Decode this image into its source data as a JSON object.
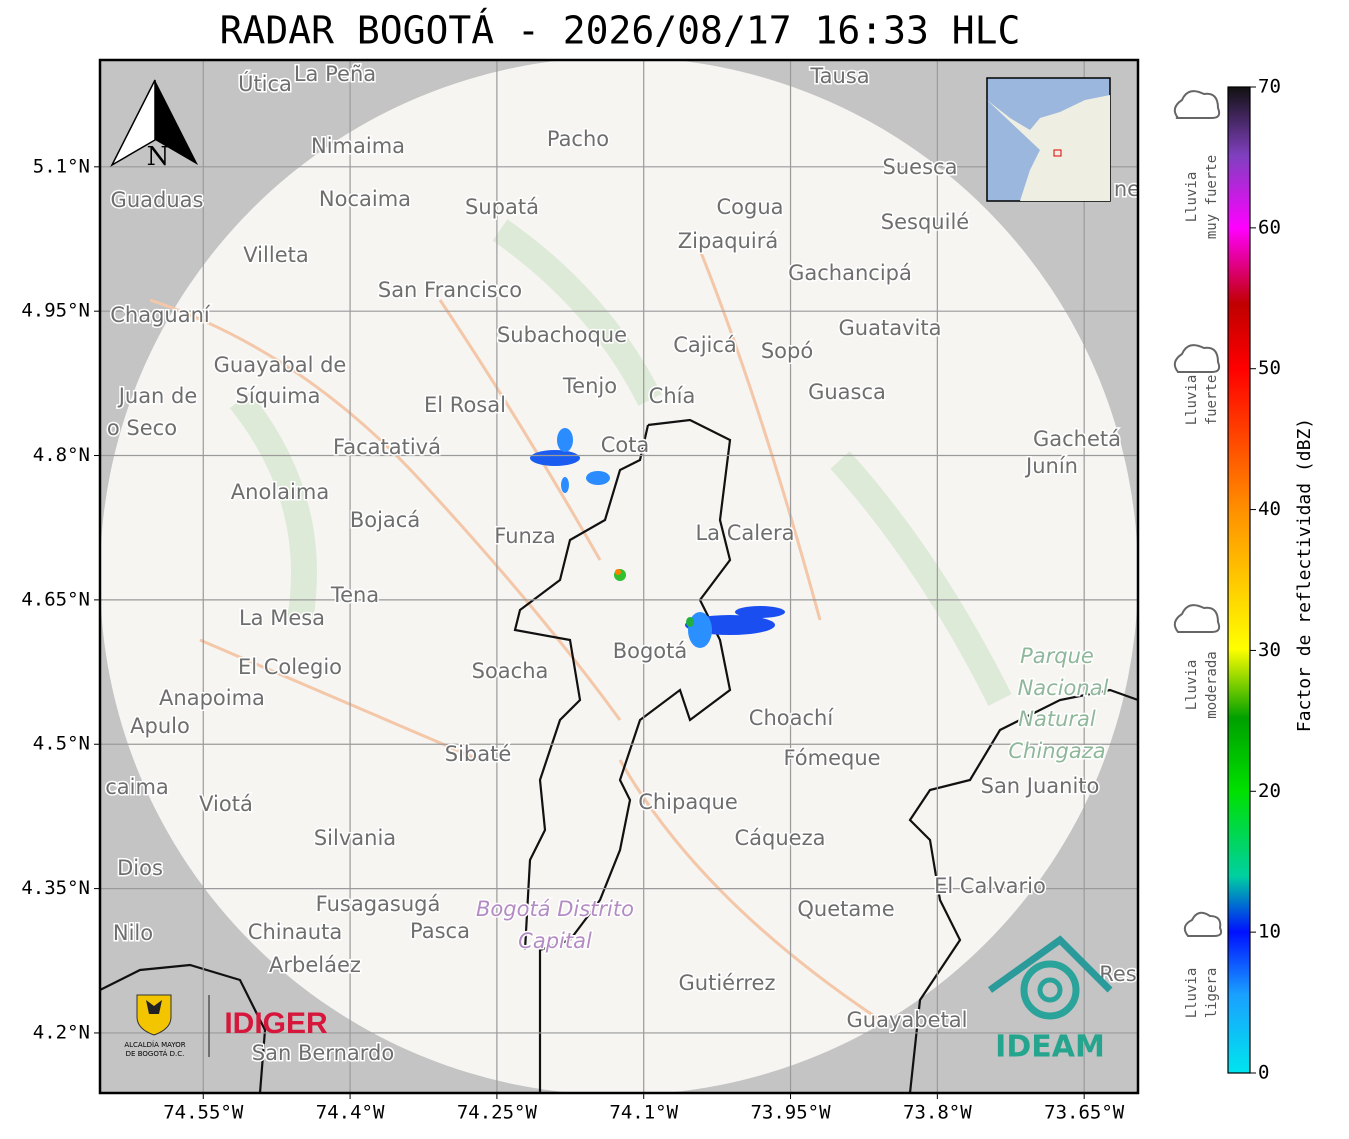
{
  "title": "RADAR BOGOTÁ - 2026/08/17 16:33 HLC",
  "map": {
    "xlim": [
      -74.6555,
      -73.595
    ],
    "ylim": [
      4.1376,
      5.211
    ],
    "grid": true,
    "xticks": [
      {
        "value": -74.55,
        "label": "74.55°W"
      },
      {
        "value": -74.4,
        "label": "74.4°W"
      },
      {
        "value": -74.25,
        "label": "74.25°W"
      },
      {
        "value": -74.1,
        "label": "74.1°W"
      },
      {
        "value": -73.95,
        "label": "73.95°W"
      },
      {
        "value": -73.8,
        "label": "73.8°W"
      },
      {
        "value": -73.65,
        "label": "73.65°W"
      }
    ],
    "yticks": [
      {
        "value": 4.2,
        "label": "4.2°N"
      },
      {
        "value": 4.35,
        "label": "4.35°N"
      },
      {
        "value": 4.5,
        "label": "4.5°N"
      },
      {
        "value": 4.65,
        "label": "4.65°N"
      },
      {
        "value": 4.8,
        "label": "4.8°N"
      },
      {
        "value": 4.95,
        "label": "4.95°N"
      },
      {
        "value": 5.1,
        "label": "5.1°N"
      }
    ],
    "compass": "N",
    "places": [
      "Útica",
      "La Peña",
      "Tausa",
      "Pacho",
      "Nimaima",
      "Suesca",
      "Guaduas",
      "Nocaima",
      "Supatá",
      "Cogua",
      "Sesquilé",
      "Zipaquirá",
      "Villeta",
      "Gachancipá",
      "San Francisco",
      "Chaguaní",
      "Guatavita",
      "Subachoque",
      "Cajicá",
      "Sopó",
      "Guayabal de",
      "Síquima",
      "Tenjo",
      "Chía",
      "Guasca",
      "Juan de",
      "o Seco",
      "El Rosal",
      "Cota",
      "Facatativá",
      "Gachetá",
      "Junín",
      "Anolaima",
      "Bojacá",
      "Funza",
      "La Calera",
      "Tena",
      "La Mesa",
      "Parque",
      "Nacional",
      "Natural",
      "Chingaza",
      "Bogotá",
      "Soacha",
      "El Colegio",
      "Anapoima",
      "Apulo",
      "Choachí",
      "Sibaté",
      "Fómeque",
      "San Juanito",
      "caima",
      "Viotá",
      "Chipaque",
      "Cáqueza",
      "Silvania",
      "Dios",
      "El Calvario",
      "Fusagasugá",
      "Quetame",
      "Bogotá Distrito",
      "Capital",
      "Nilo",
      "Chinauta",
      "Pasca",
      "Arbeláez",
      "Gutiérrez",
      "Guayabetal",
      "San Bernardo",
      "Res",
      "ne"
    ]
  },
  "colorbar": {
    "label": "Factor de reflectividad (dBZ)",
    "lim": [
      0,
      70
    ],
    "ticks": [
      0,
      10,
      20,
      30,
      40,
      50,
      60,
      70
    ]
  },
  "rain_levels": [
    [
      "Lluvia",
      "muy fuerte"
    ],
    [
      "Lluvia",
      "fuerte"
    ],
    [
      "Lluvia",
      "moderada"
    ],
    [
      "Lluvia",
      "ligera"
    ]
  ],
  "logos": {
    "alcaldia": [
      "ALCALDÍA MAYOR",
      "DE BOGOTÁ D.C."
    ],
    "idiger": "IDIGER",
    "ideam": "IDEAM"
  }
}
